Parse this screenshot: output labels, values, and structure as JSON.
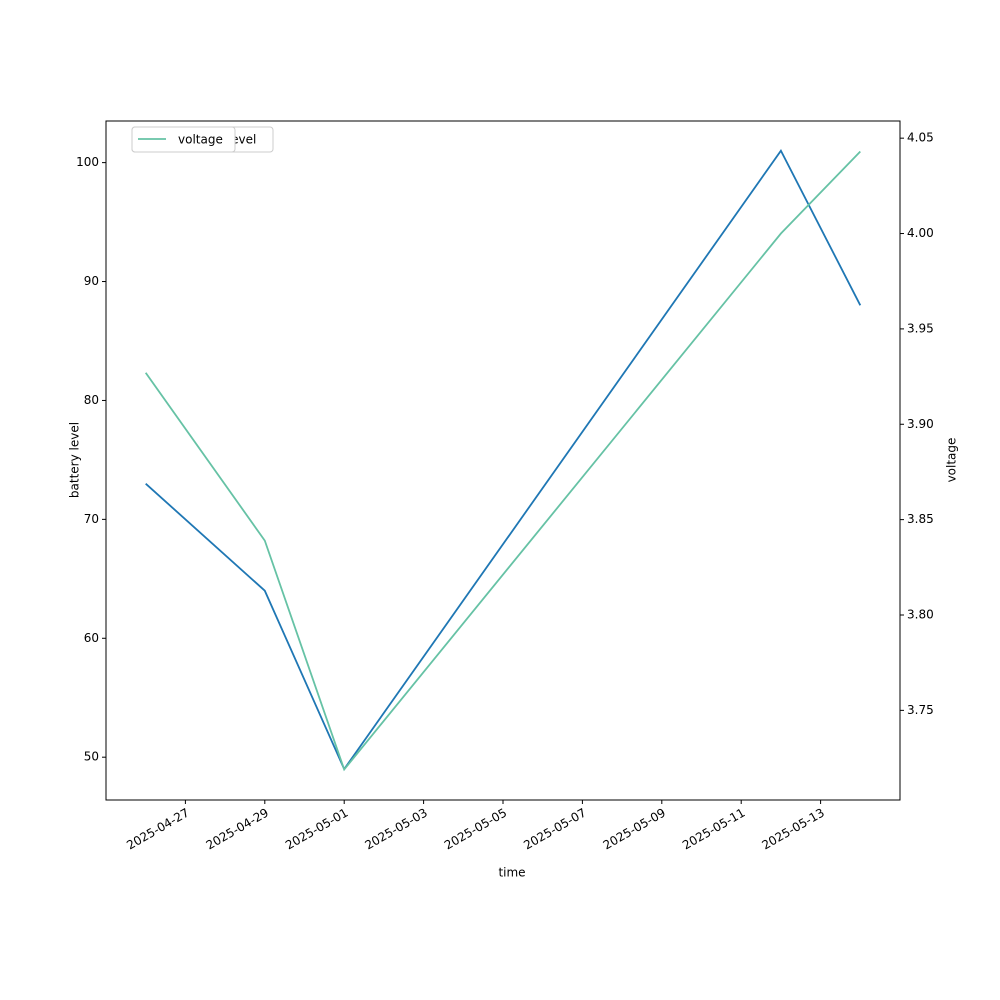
{
  "chart_data": {
    "type": "line",
    "x_label": "time",
    "y_label": "battery level",
    "y2_label": "voltage",
    "x": [
      "2025-04-26",
      "2025-04-29",
      "2025-05-01",
      "2025-05-12",
      "2025-05-14"
    ],
    "xlim": [
      "2025-04-25",
      "2025-05-15"
    ],
    "xticks": [
      "2025-04-27",
      "2025-04-29",
      "2025-05-01",
      "2025-05-03",
      "2025-05-05",
      "2025-05-07",
      "2025-05-09",
      "2025-05-11",
      "2025-05-13"
    ],
    "ylim": [
      46.4,
      103.5
    ],
    "yticks": [
      50,
      60,
      70,
      80,
      90,
      100
    ],
    "y2lim": [
      3.703,
      4.059
    ],
    "y2ticks": [
      3.75,
      {
        "value": 3.8,
        "label": "3.80"
      },
      3.85,
      {
        "value": 3.9,
        "label": "3.90"
      },
      3.95,
      {
        "value": 4.0,
        "label": "4.00"
      },
      4.05
    ],
    "legend": "upper left",
    "series": [
      {
        "name": "battery_level",
        "color": "#1f77b4",
        "values": [
          73,
          64,
          49,
          101,
          88
        ]
      },
      {
        "name": "voltage",
        "color": "#66c2a5",
        "axis": "y2",
        "values": [
          3.927,
          3.839,
          3.719,
          4.0,
          4.043
        ]
      }
    ]
  }
}
